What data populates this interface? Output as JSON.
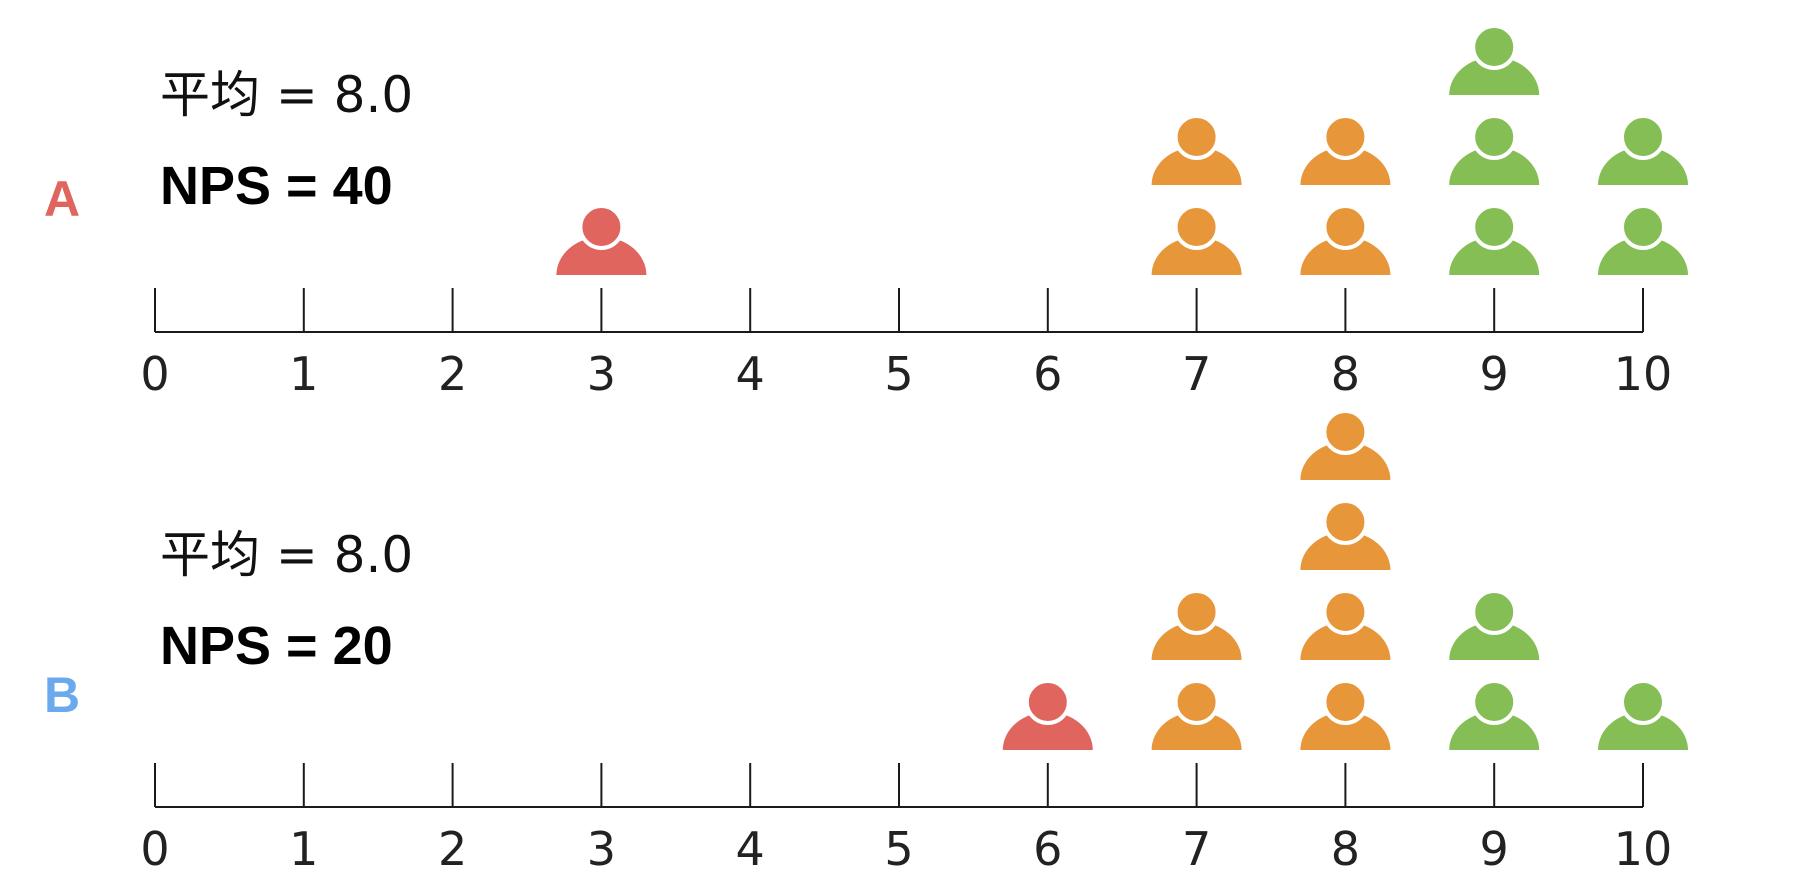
{
  "colors": {
    "detractor": "#E0655E",
    "passive": "#E8963A",
    "promoter": "#85BE55",
    "label_A": "#E0655E",
    "label_B": "#6AA9EE"
  },
  "chart_data": [
    {
      "type": "scatter",
      "group": "A",
      "mean_text": "平均 = 8.0",
      "nps_text": "NPS = 40",
      "x_ticks": [
        "0",
        "1",
        "2",
        "3",
        "4",
        "5",
        "6",
        "7",
        "8",
        "9",
        "10"
      ],
      "xlim": [
        0,
        10
      ],
      "counts": [
        {
          "score": 3,
          "count": 1,
          "category": "detractor"
        },
        {
          "score": 7,
          "count": 2,
          "category": "passive"
        },
        {
          "score": 8,
          "count": 2,
          "category": "passive"
        },
        {
          "score": 9,
          "count": 3,
          "category": "promoter"
        },
        {
          "score": 10,
          "count": 2,
          "category": "promoter"
        }
      ]
    },
    {
      "type": "scatter",
      "group": "B",
      "mean_text": "平均 = 8.0",
      "nps_text": "NPS = 20",
      "x_ticks": [
        "0",
        "1",
        "2",
        "3",
        "4",
        "5",
        "6",
        "7",
        "8",
        "9",
        "10"
      ],
      "xlim": [
        0,
        10
      ],
      "counts": [
        {
          "score": 6,
          "count": 1,
          "category": "detractor"
        },
        {
          "score": 7,
          "count": 2,
          "category": "passive"
        },
        {
          "score": 8,
          "count": 4,
          "category": "passive"
        },
        {
          "score": 9,
          "count": 2,
          "category": "promoter"
        },
        {
          "score": 10,
          "count": 1,
          "category": "promoter"
        }
      ]
    }
  ]
}
